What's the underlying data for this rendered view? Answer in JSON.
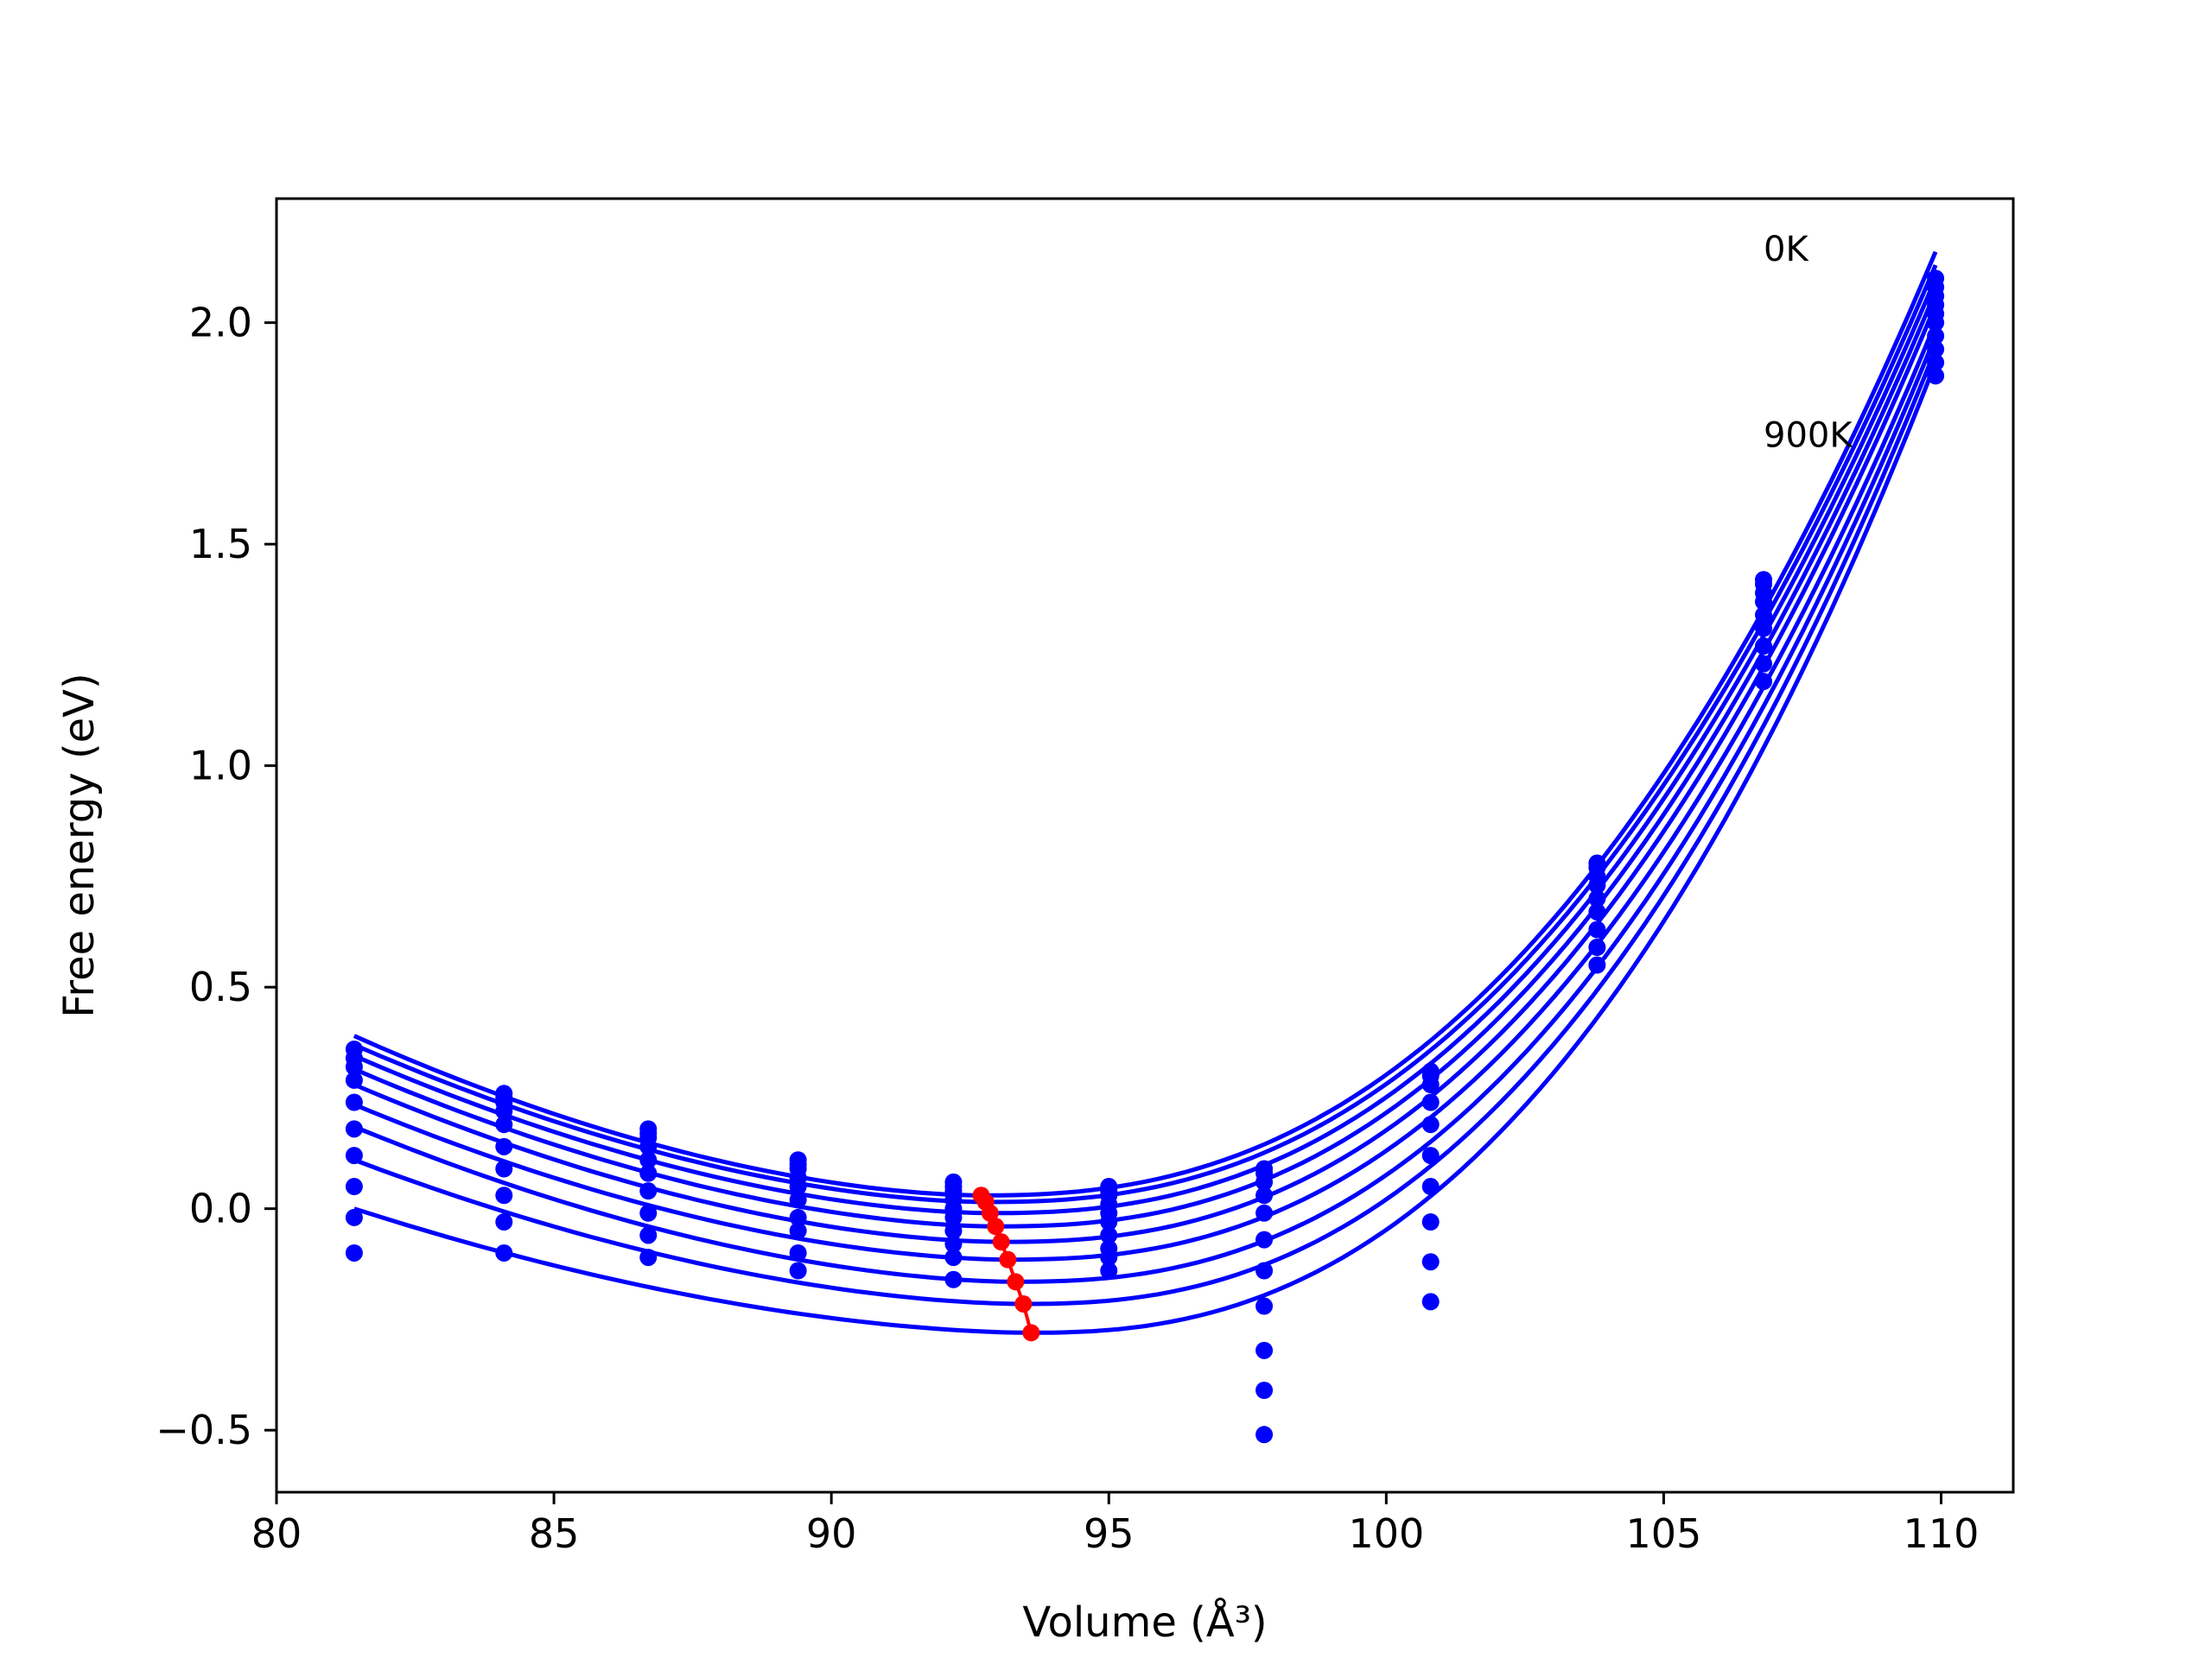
{
  "chart_data": {
    "type": "scatter",
    "title": "",
    "xlabel": "Volume (Å³)",
    "ylabel": "Free energy (eV)",
    "xlim": [
      80,
      111.3
    ],
    "ylim": [
      -0.64,
      2.28
    ],
    "xticks": [
      80,
      85,
      90,
      95,
      100,
      105,
      110
    ],
    "yticks": [
      -0.5,
      0.0,
      0.5,
      1.0,
      1.5,
      2.0
    ],
    "xtick_labels": [
      "80",
      "85",
      "90",
      "95",
      "100",
      "105",
      "110"
    ],
    "ytick_labels": [
      "−0.5",
      "0.0",
      "0.5",
      "1.0",
      "1.5",
      "2.0"
    ],
    "grid": false,
    "annotations": [
      {
        "text": "0K",
        "x": 106.8,
        "y": 2.14
      },
      {
        "text": "900K",
        "x": 106.8,
        "y": 1.72
      }
    ],
    "fit_curves": {
      "description": "Fitted free-energy curves, one per temperature",
      "minima_volume": [
        92.7,
        92.78,
        92.86,
        92.96,
        93.06,
        93.18,
        93.32,
        93.46,
        93.6
      ],
      "minima_energy": [
        0.03,
        0.015,
        -0.01,
        -0.04,
        -0.075,
        -0.115,
        -0.165,
        -0.215,
        -0.28
      ],
      "left_end_energy": [
        0.39,
        0.37,
        0.345,
        0.315,
        0.28,
        0.235,
        0.185,
        0.11,
        0.0
      ],
      "right_end_energy": [
        2.16,
        2.13,
        2.1,
        2.07,
        2.04,
        2.0,
        1.97,
        1.94,
        1.91
      ],
      "x_start": 81.4,
      "x_end": 109.9
    },
    "scatter_data": [
      {
        "x": 81.4,
        "y": [
          0.36,
          0.34,
          0.32,
          0.29,
          0.24,
          0.18,
          0.12,
          0.05,
          -0.02,
          -0.1
        ]
      },
      {
        "x": 84.1,
        "y": [
          0.26,
          0.25,
          0.24,
          0.22,
          0.19,
          0.14,
          0.09,
          0.03,
          -0.03,
          -0.1
        ]
      },
      {
        "x": 86.7,
        "y": [
          0.18,
          0.17,
          0.16,
          0.14,
          0.11,
          0.08,
          0.04,
          -0.01,
          -0.06,
          -0.11
        ]
      },
      {
        "x": 89.4,
        "y": [
          0.11,
          0.1,
          0.09,
          0.07,
          0.05,
          0.02,
          -0.02,
          -0.05,
          -0.1,
          -0.14
        ]
      },
      {
        "x": 92.2,
        "y": [
          0.06,
          0.05,
          0.04,
          0.02,
          0.0,
          -0.02,
          -0.05,
          -0.08,
          -0.11,
          -0.16
        ]
      },
      {
        "x": 95.0,
        "y": [
          0.05,
          0.04,
          0.03,
          0.01,
          -0.01,
          -0.03,
          -0.06,
          -0.09,
          -0.11,
          -0.14
        ]
      },
      {
        "x": 97.8,
        "y": [
          0.09,
          0.08,
          0.06,
          0.03,
          -0.01,
          -0.07,
          -0.14,
          -0.22,
          -0.32,
          -0.41,
          -0.51
        ]
      },
      {
        "x": 100.8,
        "y": [
          0.31,
          0.3,
          0.28,
          0.24,
          0.19,
          0.12,
          0.05,
          -0.03,
          -0.12,
          -0.21
        ]
      },
      {
        "x": 103.8,
        "y": [
          0.78,
          0.77,
          0.75,
          0.73,
          0.7,
          0.67,
          0.63,
          0.59,
          0.55
        ]
      },
      {
        "x": 106.8,
        "y": [
          1.42,
          1.41,
          1.39,
          1.37,
          1.34,
          1.31,
          1.27,
          1.23,
          1.19
        ]
      },
      {
        "x": 109.9,
        "y": [
          2.1,
          2.08,
          2.06,
          2.04,
          2.02,
          2.0,
          1.97,
          1.94,
          1.91,
          1.88
        ]
      }
    ],
    "minima_path": {
      "x": [
        92.7,
        92.78,
        92.86,
        92.96,
        93.06,
        93.18,
        93.32,
        93.46,
        93.6
      ],
      "y": [
        0.03,
        0.015,
        -0.01,
        -0.04,
        -0.075,
        -0.115,
        -0.165,
        -0.215,
        -0.28
      ]
    },
    "colors": {
      "curves": "#0000ff",
      "points": "#0000ff",
      "minima": "#ff0000",
      "axes": "#000000"
    }
  }
}
